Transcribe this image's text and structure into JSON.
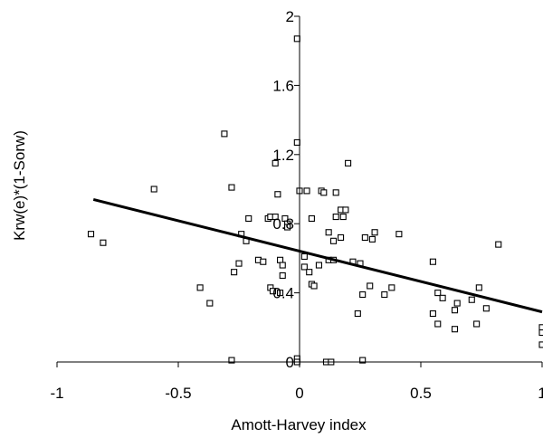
{
  "chart_data": {
    "type": "scatter",
    "xlabel": "Amott-Harvey index",
    "ylabel": "Krw(e)*(1-Sorw)",
    "xlim": [
      -1,
      1
    ],
    "ylim": [
      0,
      2
    ],
    "x_ticks": [
      "-1",
      "-0.5",
      "0",
      "0.5",
      "1"
    ],
    "y_ticks": [
      "0",
      "0.4",
      "0.8",
      "1.2",
      "1.6",
      "2"
    ],
    "grid": false,
    "legend": "none",
    "marker": "open-square",
    "trendline": {
      "type": "linear",
      "x": [
        -0.85,
        1.0
      ],
      "y": [
        0.94,
        0.29
      ]
    },
    "points": [
      [
        -0.86,
        0.74
      ],
      [
        -0.81,
        0.69
      ],
      [
        -0.6,
        1.0
      ],
      [
        -0.41,
        0.43
      ],
      [
        -0.37,
        0.34
      ],
      [
        -0.31,
        1.32
      ],
      [
        -0.28,
        1.01
      ],
      [
        -0.28,
        0.01
      ],
      [
        -0.27,
        0.52
      ],
      [
        -0.25,
        0.57
      ],
      [
        -0.24,
        0.74
      ],
      [
        -0.22,
        0.7
      ],
      [
        -0.21,
        0.83
      ],
      [
        -0.17,
        0.59
      ],
      [
        -0.15,
        0.58
      ],
      [
        -0.13,
        0.83
      ],
      [
        -0.12,
        0.43
      ],
      [
        -0.12,
        0.84
      ],
      [
        -0.11,
        0.41
      ],
      [
        -0.1,
        1.15
      ],
      [
        -0.1,
        0.84
      ],
      [
        -0.09,
        0.97
      ],
      [
        -0.08,
        0.59
      ],
      [
        -0.08,
        0.4
      ],
      [
        -0.07,
        0.56
      ],
      [
        -0.07,
        0.5
      ],
      [
        -0.06,
        0.83
      ],
      [
        -0.05,
        0.8
      ],
      [
        -0.05,
        0.78
      ],
      [
        -0.01,
        1.87
      ],
      [
        -0.01,
        1.27
      ],
      [
        -0.01,
        0.02
      ],
      [
        -0.01,
        0.0
      ],
      [
        0.0,
        0.99
      ],
      [
        0.02,
        0.61
      ],
      [
        0.02,
        0.55
      ],
      [
        0.03,
        0.99
      ],
      [
        0.04,
        0.52
      ],
      [
        0.05,
        0.83
      ],
      [
        0.05,
        0.45
      ],
      [
        0.06,
        0.44
      ],
      [
        0.08,
        0.56
      ],
      [
        0.09,
        0.99
      ],
      [
        0.1,
        0.98
      ],
      [
        0.11,
        0.0
      ],
      [
        0.12,
        0.75
      ],
      [
        0.12,
        0.59
      ],
      [
        0.13,
        0.0
      ],
      [
        0.14,
        0.7
      ],
      [
        0.14,
        0.59
      ],
      [
        0.15,
        0.84
      ],
      [
        0.15,
        0.98
      ],
      [
        0.17,
        0.88
      ],
      [
        0.17,
        0.72
      ],
      [
        0.18,
        0.84
      ],
      [
        0.19,
        0.88
      ],
      [
        0.2,
        1.15
      ],
      [
        0.22,
        0.58
      ],
      [
        0.24,
        0.28
      ],
      [
        0.25,
        0.57
      ],
      [
        0.26,
        0.39
      ],
      [
        0.26,
        0.01
      ],
      [
        0.27,
        0.72
      ],
      [
        0.29,
        0.44
      ],
      [
        0.3,
        0.71
      ],
      [
        0.31,
        0.75
      ],
      [
        0.35,
        0.39
      ],
      [
        0.38,
        0.43
      ],
      [
        0.41,
        0.74
      ],
      [
        0.55,
        0.58
      ],
      [
        0.55,
        0.28
      ],
      [
        0.57,
        0.4
      ],
      [
        0.57,
        0.22
      ],
      [
        0.59,
        0.37
      ],
      [
        0.64,
        0.19
      ],
      [
        0.64,
        0.3
      ],
      [
        0.65,
        0.34
      ],
      [
        0.71,
        0.36
      ],
      [
        0.73,
        0.22
      ],
      [
        0.74,
        0.43
      ],
      [
        0.77,
        0.31
      ],
      [
        0.82,
        0.68
      ],
      [
        1.0,
        0.2
      ],
      [
        1.0,
        0.17
      ],
      [
        1.0,
        0.1
      ]
    ]
  }
}
